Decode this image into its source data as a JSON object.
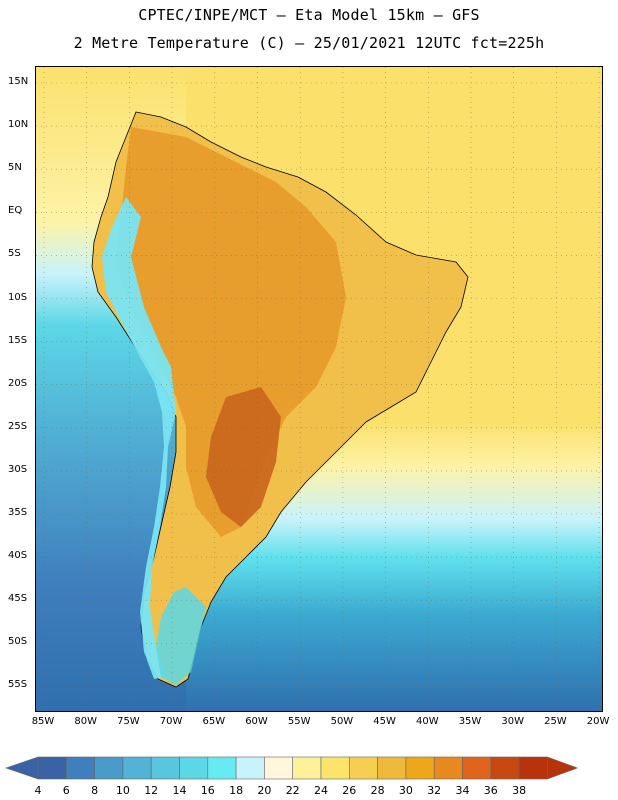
{
  "header": {
    "title_line1": "CPTEC/INPE/MCT –  Eta Model 15km – GFS",
    "title_line2": "2 Metre Temperature (C) – 25/01/2021 12UTC fct=225h"
  },
  "map": {
    "lat_labels": [
      "15N",
      "10N",
      "5N",
      "EQ",
      "5S",
      "10S",
      "15S",
      "20S",
      "25S",
      "30S",
      "35S",
      "40S",
      "45S",
      "50S",
      "55S"
    ],
    "lon_labels": [
      "85W",
      "80W",
      "75W",
      "70W",
      "65W",
      "60W",
      "55W",
      "50W",
      "45W",
      "40W",
      "35W",
      "30W",
      "25W",
      "20W"
    ],
    "colors": {
      "ocean_tropical": "#fbe16c",
      "ocean_mid": "#f9ed95",
      "ocean_cool": "#5fe0ec",
      "ocean_cold": "#3ba8d0",
      "ocean_deep": "#2f6fae",
      "land_hot": "#e79a2a",
      "land_warm": "#f1c04a",
      "land_andes": "#79e4f2",
      "land_hottest": "#c9641c",
      "border": "#000000",
      "grid": "#7a6b3a"
    }
  },
  "legend": {
    "labels": [
      "4",
      "6",
      "8",
      "10",
      "12",
      "14",
      "16",
      "18",
      "20",
      "22",
      "24",
      "26",
      "28",
      "30",
      "32",
      "34",
      "36",
      "38"
    ],
    "colors": [
      "#3a63a5",
      "#3f7fbd",
      "#489bcb",
      "#52b3d6",
      "#58c6df",
      "#5cd7e6",
      "#66ebf2",
      "#c8f3fb",
      "#fff6dc",
      "#fdf29a",
      "#fbe36c",
      "#f6cf52",
      "#efba3b",
      "#eca81a",
      "#e8891f",
      "#e0641b",
      "#c94710",
      "#b8330b"
    ]
  }
}
